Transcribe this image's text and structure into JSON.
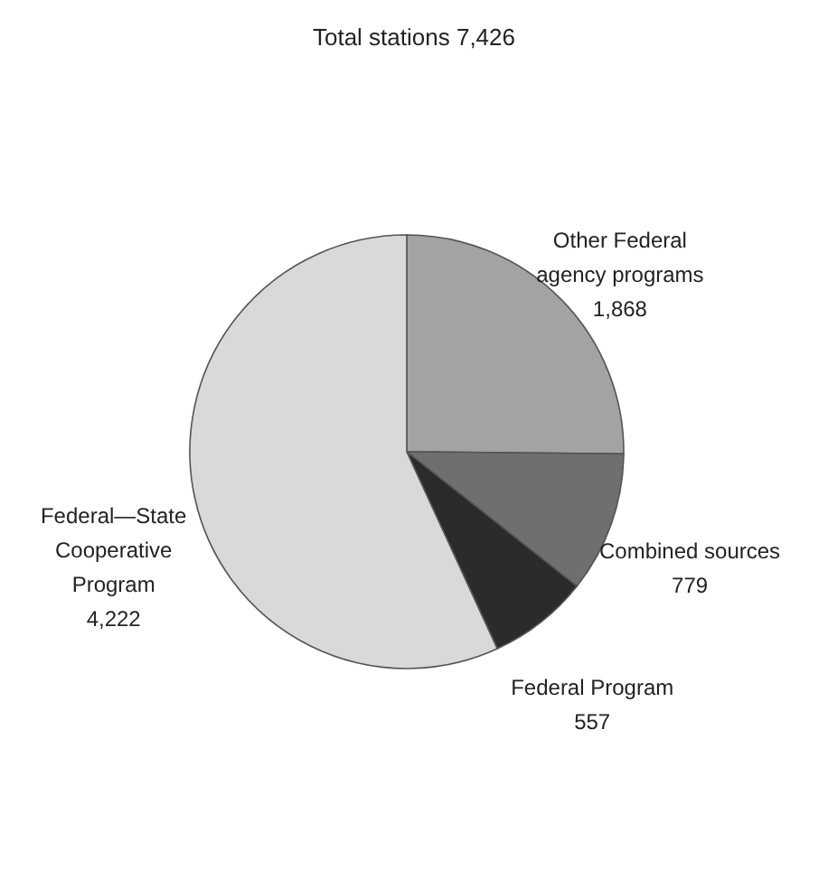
{
  "chart_data": {
    "type": "pie",
    "title": "Total stations 7,426",
    "categories": [
      "Other Federal agency programs",
      "Combined sources",
      "Federal Program",
      "Federal—State Cooperative Program"
    ],
    "values": [
      1868,
      779,
      557,
      4222
    ],
    "colors": [
      "#a3a3a3",
      "#6f6f6f",
      "#2b2b2b",
      "#d9d9d9"
    ],
    "value_labels": [
      "1,868",
      "779",
      "557",
      "4,222"
    ],
    "legend": false
  }
}
